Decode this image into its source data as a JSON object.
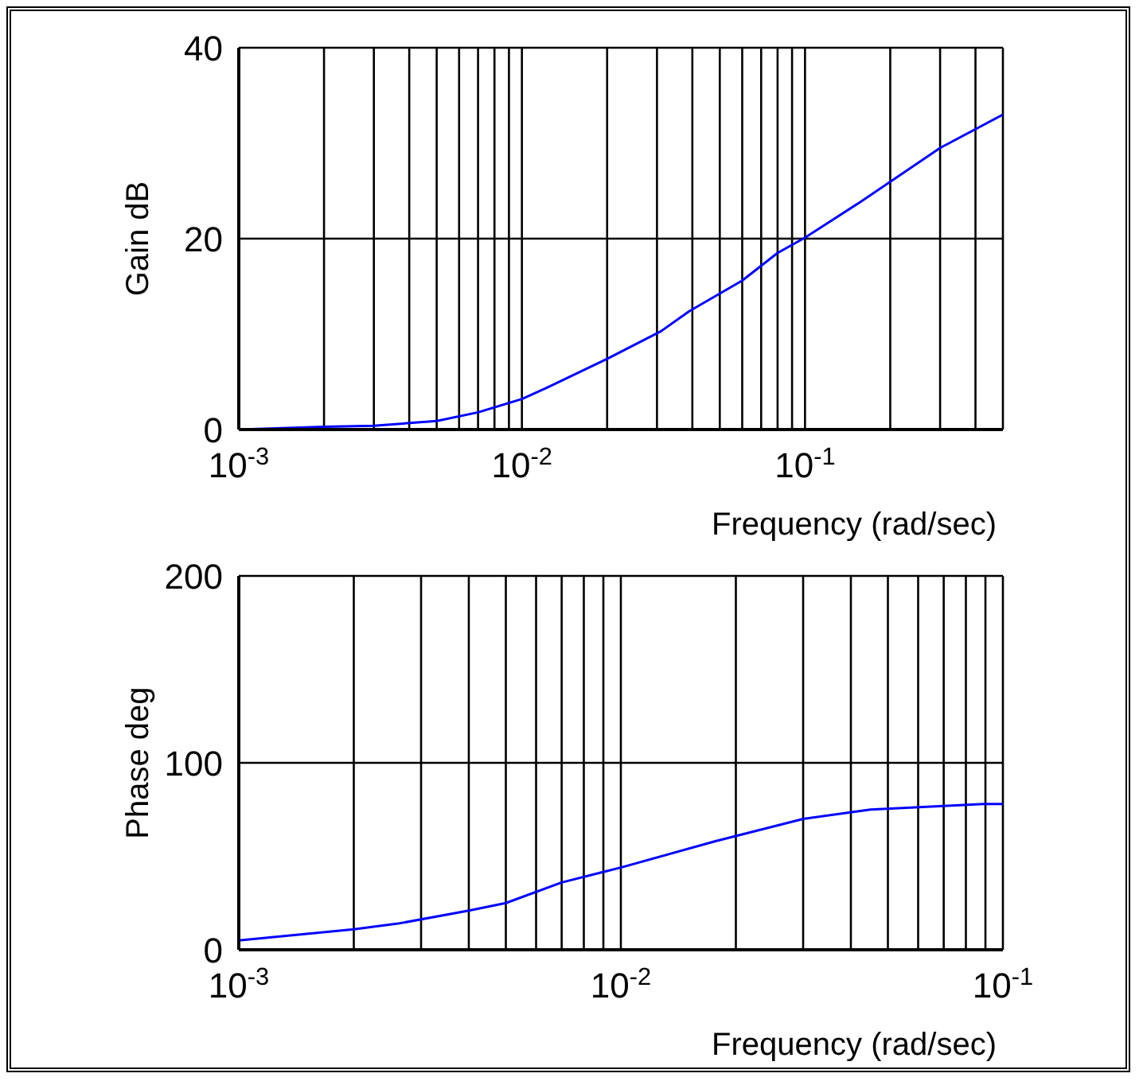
{
  "chart_data": [
    {
      "type": "line",
      "ylabel": "Gain dB",
      "xlabel": "Frequency (rad/sec)",
      "log": "x",
      "grid": true,
      "xlim": [
        0.001,
        0.5
      ],
      "ylim": [
        0,
        40
      ],
      "yticks": [
        0,
        20,
        40
      ],
      "xticks": [
        {
          "value": 0.001,
          "label": "10$^{-3}$"
        },
        {
          "value": 0.002,
          "label": null
        },
        {
          "value": 0.003,
          "label": null
        },
        {
          "value": 0.004,
          "label": null
        },
        {
          "value": 0.005,
          "label": null
        },
        {
          "value": 0.006,
          "label": null
        },
        {
          "value": 0.007,
          "label": null
        },
        {
          "value": 0.008,
          "label": null
        },
        {
          "value": 0.009,
          "label": null
        },
        {
          "value": 0.01,
          "label": "10$^{-2}$"
        },
        {
          "value": 0.02,
          "label": null
        },
        {
          "value": 0.03,
          "label": null
        },
        {
          "value": 0.04,
          "label": null
        },
        {
          "value": 0.05,
          "label": null
        },
        {
          "value": 0.06,
          "label": null
        },
        {
          "value": 0.07,
          "label": null
        },
        {
          "value": 0.08,
          "label": null
        },
        {
          "value": 0.09,
          "label": null
        },
        {
          "value": 0.1,
          "label": "10$^{-1}$"
        },
        {
          "value": 0.2,
          "label": null
        },
        {
          "value": 0.3,
          "label": null
        },
        {
          "value": 0.4,
          "label": null
        }
      ],
      "series": [
        {
          "color": "#0000ff",
          "x": [
            0.001,
            0.002,
            0.003,
            0.005,
            0.007,
            0.01,
            0.0123,
            0.02,
            0.031,
            0.039,
            0.06,
            0.08,
            0.1,
            0.156,
            0.3,
            0.5
          ],
          "values": [
            0,
            0.3,
            0.4,
            0.9,
            1.8,
            3.2,
            4.4,
            7.4,
            10.3,
            12.4,
            15.6,
            18.5,
            20.1,
            23.8,
            29.5,
            33
          ]
        }
      ]
    },
    {
      "type": "line",
      "ylabel": "Phase deg",
      "xlabel": "Frequency (rad/sec)",
      "log": "x",
      "grid": true,
      "xlim": [
        0.001,
        0.1
      ],
      "ylim": [
        0,
        200
      ],
      "yticks": [
        0,
        100,
        200
      ],
      "xticks": [
        {
          "value": 0.001,
          "label": "10$^{-3}$"
        },
        {
          "value": 0.002,
          "label": null
        },
        {
          "value": 0.003,
          "label": null
        },
        {
          "value": 0.004,
          "label": null
        },
        {
          "value": 0.005,
          "label": null
        },
        {
          "value": 0.006,
          "label": null
        },
        {
          "value": 0.007,
          "label": null
        },
        {
          "value": 0.008,
          "label": null
        },
        {
          "value": 0.009,
          "label": null
        },
        {
          "value": 0.01,
          "label": "10$^{-2}$"
        },
        {
          "value": 0.02,
          "label": null
        },
        {
          "value": 0.03,
          "label": null
        },
        {
          "value": 0.04,
          "label": null
        },
        {
          "value": 0.05,
          "label": null
        },
        {
          "value": 0.06,
          "label": null
        },
        {
          "value": 0.07,
          "label": null
        },
        {
          "value": 0.08,
          "label": null
        },
        {
          "value": 0.09,
          "label": null
        },
        {
          "value": 0.1,
          "label": "10$^{-1}$"
        }
      ],
      "series": [
        {
          "color": "#0000ff",
          "x": [
            0.001,
            0.002,
            0.00261,
            0.004,
            0.005,
            0.007,
            0.01,
            0.0176,
            0.03,
            0.045,
            0.089,
            0.1
          ],
          "values": [
            5,
            11,
            14,
            21,
            25,
            36,
            44,
            58,
            70,
            75,
            78,
            78
          ]
        }
      ]
    }
  ]
}
